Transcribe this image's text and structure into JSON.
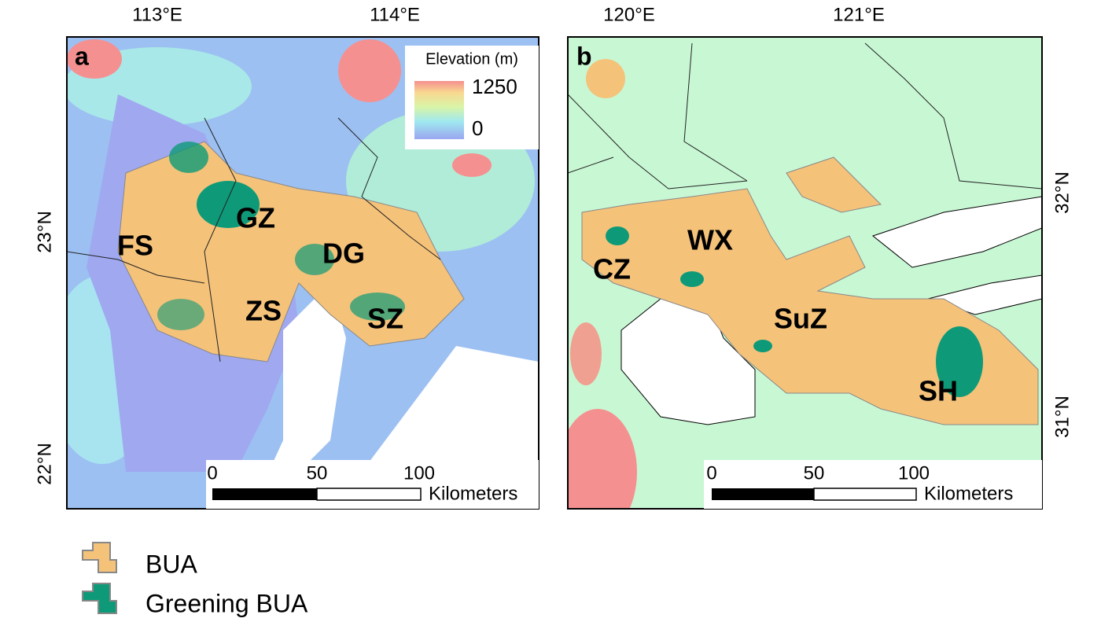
{
  "panels": [
    {
      "letter": "a",
      "lon_labels": [
        "113°E",
        "114°E"
      ],
      "lat_labels": [
        "23°N",
        "22°N"
      ],
      "cities": [
        "GZ",
        "FS",
        "DG",
        "ZS",
        "SZ"
      ],
      "scale": {
        "ticks": [
          0,
          50,
          100
        ],
        "unit": "Kilometers"
      },
      "elevation_legend": {
        "title": "Elevation (m)",
        "max": 1250,
        "min": 0
      }
    },
    {
      "letter": "b",
      "lon_labels": [
        "120°E",
        "121°E"
      ],
      "lat_labels": [
        "32°N",
        "31°N"
      ],
      "cities": [
        "CZ",
        "WX",
        "SuZ",
        "SH"
      ],
      "scale": {
        "ticks": [
          0,
          50,
          100
        ],
        "unit": "Kilometers"
      }
    }
  ],
  "legend": [
    "BUA",
    "Greening BUA"
  ]
}
